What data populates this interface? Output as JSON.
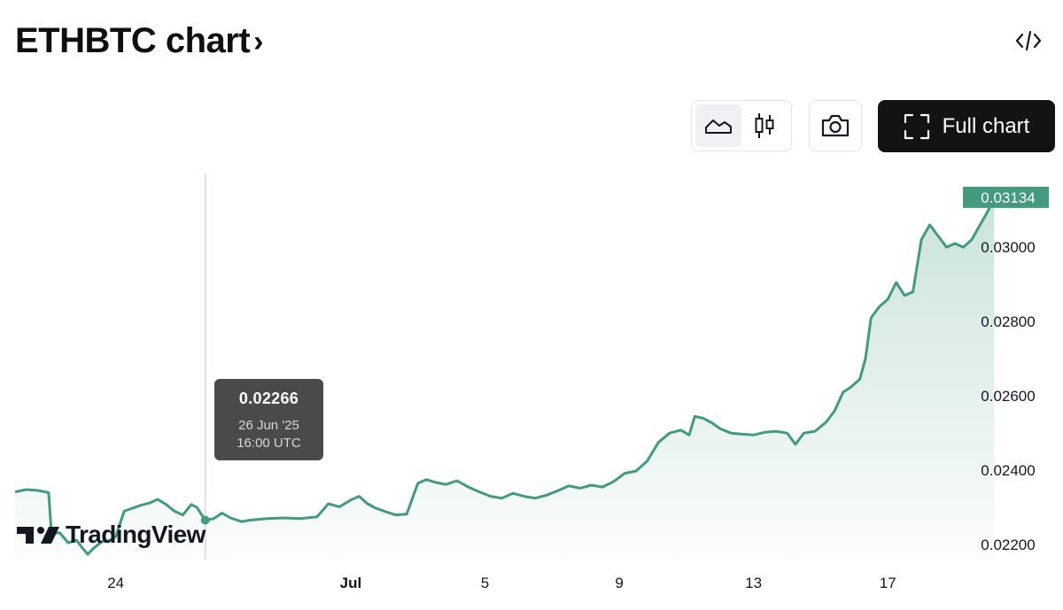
{
  "header": {
    "title": "ETHBTC chart",
    "chevron": "›",
    "embed_icon": "code-brackets-icon"
  },
  "toolbar": {
    "chart_types": [
      {
        "name": "area",
        "icon": "area-chart-icon",
        "active": true
      },
      {
        "name": "candles",
        "icon": "candlestick-icon",
        "active": false
      }
    ],
    "snapshot_icon": "camera-icon",
    "full_chart_label": "Full chart",
    "full_chart_icon": "fullscreen-corners-icon"
  },
  "tooltip": {
    "value": "0.02266",
    "date": "26 Jun '25",
    "time": "16:00 UTC"
  },
  "logo": {
    "text": "TradingView"
  },
  "colors": {
    "line": "#439a7f",
    "last_price_bg": "#439a7f",
    "tooltip_bg": "#4a4a4a",
    "button_dark": "#131313"
  },
  "chart_data": {
    "type": "area",
    "x_start": "2025-06-21",
    "x_end": "2025-07-19",
    "x_ticks": [
      {
        "date": "2025-06-24",
        "label": "24",
        "bold": false
      },
      {
        "date": "2025-07-01",
        "label": "Jul",
        "bold": true
      },
      {
        "date": "2025-07-05",
        "label": "5",
        "bold": false
      },
      {
        "date": "2025-07-09",
        "label": "9",
        "bold": false
      },
      {
        "date": "2025-07-13",
        "label": "13",
        "bold": false
      },
      {
        "date": "2025-07-17",
        "label": "17",
        "bold": false
      }
    ],
    "y_ticks": [
      "0.02200",
      "0.02400",
      "0.02600",
      "0.02800",
      "0.03000"
    ],
    "ylim": [
      0.0216,
      0.03198
    ],
    "last_price": "0.03134",
    "crosshair": {
      "x": "2025-06-26 16:00",
      "y": 0.02266
    },
    "series": [
      {
        "points": [
          [
            "2025-06-21 00:00",
            0.02342
          ],
          [
            "2025-06-21 08:00",
            0.02348
          ],
          [
            "2025-06-21 16:00",
            0.02346
          ],
          [
            "2025-06-22 00:00",
            0.0234
          ],
          [
            "2025-06-22 02:00",
            0.0223
          ],
          [
            "2025-06-22 08:00",
            0.02232
          ],
          [
            "2025-06-22 14:00",
            0.02205
          ],
          [
            "2025-06-22 20:00",
            0.02212
          ],
          [
            "2025-06-23 00:00",
            0.02192
          ],
          [
            "2025-06-23 04:00",
            0.02174
          ],
          [
            "2025-06-23 08:00",
            0.0219
          ],
          [
            "2025-06-23 14:00",
            0.02208
          ],
          [
            "2025-06-23 20:00",
            0.02212
          ],
          [
            "2025-06-24 00:00",
            0.02222
          ],
          [
            "2025-06-24 06:00",
            0.0229
          ],
          [
            "2025-06-24 12:00",
            0.02298
          ],
          [
            "2025-06-24 18:00",
            0.02306
          ],
          [
            "2025-06-25 00:00",
            0.02312
          ],
          [
            "2025-06-25 06:00",
            0.02322
          ],
          [
            "2025-06-25 12:00",
            0.02308
          ],
          [
            "2025-06-25 18:00",
            0.0229
          ],
          [
            "2025-06-26 00:00",
            0.0228
          ],
          [
            "2025-06-26 06:00",
            0.02308
          ],
          [
            "2025-06-26 10:00",
            0.023
          ],
          [
            "2025-06-26 16:00",
            0.02266
          ],
          [
            "2025-06-26 22:00",
            0.0227
          ],
          [
            "2025-06-27 04:00",
            0.02285
          ],
          [
            "2025-06-27 10:00",
            0.02272
          ],
          [
            "2025-06-27 18:00",
            0.02262
          ],
          [
            "2025-06-28 00:00",
            0.02266
          ],
          [
            "2025-06-28 12:00",
            0.0227
          ],
          [
            "2025-06-29 00:00",
            0.02272
          ],
          [
            "2025-06-29 12:00",
            0.0227
          ],
          [
            "2025-06-30 00:00",
            0.02275
          ],
          [
            "2025-06-30 08:00",
            0.0231
          ],
          [
            "2025-06-30 16:00",
            0.02302
          ],
          [
            "2025-07-01 00:00",
            0.0232
          ],
          [
            "2025-07-01 06:00",
            0.0233
          ],
          [
            "2025-07-01 12:00",
            0.0231
          ],
          [
            "2025-07-01 18:00",
            0.02298
          ],
          [
            "2025-07-02 00:00",
            0.0229
          ],
          [
            "2025-07-02 08:00",
            0.0228
          ],
          [
            "2025-07-02 16:00",
            0.02282
          ],
          [
            "2025-07-03 00:00",
            0.02365
          ],
          [
            "2025-07-03 06:00",
            0.02375
          ],
          [
            "2025-07-03 12:00",
            0.02368
          ],
          [
            "2025-07-03 20:00",
            0.02362
          ],
          [
            "2025-07-04 04:00",
            0.02372
          ],
          [
            "2025-07-04 12:00",
            0.02355
          ],
          [
            "2025-07-04 20:00",
            0.02342
          ],
          [
            "2025-07-05 04:00",
            0.0233
          ],
          [
            "2025-07-05 12:00",
            0.02325
          ],
          [
            "2025-07-05 20:00",
            0.02338
          ],
          [
            "2025-07-06 04:00",
            0.0233
          ],
          [
            "2025-07-06 12:00",
            0.02325
          ],
          [
            "2025-07-06 20:00",
            0.02333
          ],
          [
            "2025-07-07 04:00",
            0.02345
          ],
          [
            "2025-07-07 12:00",
            0.02358
          ],
          [
            "2025-07-07 20:00",
            0.02352
          ],
          [
            "2025-07-08 04:00",
            0.0236
          ],
          [
            "2025-07-08 12:00",
            0.02355
          ],
          [
            "2025-07-08 20:00",
            0.0237
          ],
          [
            "2025-07-09 04:00",
            0.02392
          ],
          [
            "2025-07-09 12:00",
            0.02398
          ],
          [
            "2025-07-09 20:00",
            0.02425
          ],
          [
            "2025-07-10 04:00",
            0.02475
          ],
          [
            "2025-07-10 12:00",
            0.025
          ],
          [
            "2025-07-10 20:00",
            0.02508
          ],
          [
            "2025-07-11 02:00",
            0.02495
          ],
          [
            "2025-07-11 06:00",
            0.02545
          ],
          [
            "2025-07-11 12:00",
            0.0254
          ],
          [
            "2025-07-11 18:00",
            0.02528
          ],
          [
            "2025-07-12 00:00",
            0.02512
          ],
          [
            "2025-07-12 08:00",
            0.025
          ],
          [
            "2025-07-12 16:00",
            0.02497
          ],
          [
            "2025-07-13 00:00",
            0.02495
          ],
          [
            "2025-07-13 08:00",
            0.02502
          ],
          [
            "2025-07-13 16:00",
            0.02505
          ],
          [
            "2025-07-14 00:00",
            0.025
          ],
          [
            "2025-07-14 06:00",
            0.0247
          ],
          [
            "2025-07-14 12:00",
            0.025
          ],
          [
            "2025-07-14 20:00",
            0.02505
          ],
          [
            "2025-07-15 04:00",
            0.0253
          ],
          [
            "2025-07-15 10:00",
            0.0256
          ],
          [
            "2025-07-15 16:00",
            0.0261
          ],
          [
            "2025-07-15 22:00",
            0.02625
          ],
          [
            "2025-07-16 04:00",
            0.02645
          ],
          [
            "2025-07-16 08:00",
            0.027
          ],
          [
            "2025-07-16 12:00",
            0.0281
          ],
          [
            "2025-07-16 18:00",
            0.0284
          ],
          [
            "2025-07-17 00:00",
            0.0286
          ],
          [
            "2025-07-17 06:00",
            0.02905
          ],
          [
            "2025-07-17 12:00",
            0.0287
          ],
          [
            "2025-07-17 18:00",
            0.0288
          ],
          [
            "2025-07-18 00:00",
            0.0302
          ],
          [
            "2025-07-18 06:00",
            0.0306
          ],
          [
            "2025-07-18 12:00",
            0.0303
          ],
          [
            "2025-07-18 18:00",
            0.03
          ],
          [
            "2025-07-19 00:00",
            0.0301
          ],
          [
            "2025-07-19 06:00",
            0.03
          ],
          [
            "2025-07-19 12:00",
            0.0302
          ],
          [
            "2025-07-19 18:00",
            0.0306
          ],
          [
            "2025-07-20 00:00",
            0.031
          ],
          [
            "2025-07-20 04:00",
            0.03134
          ]
        ]
      }
    ]
  }
}
